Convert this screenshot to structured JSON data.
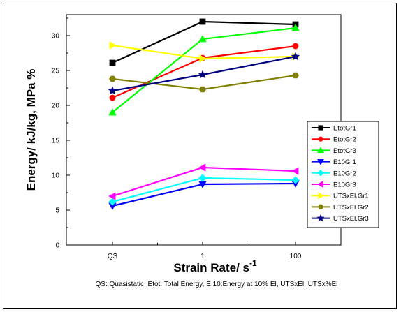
{
  "chart_data": {
    "type": "line",
    "categories": [
      "QS",
      "1",
      "100"
    ],
    "ylim": [
      0,
      33
    ],
    "yticks": [
      0,
      5,
      10,
      15,
      20,
      25,
      30
    ],
    "ylabel": "Energy/ kJ/kg, MPa %",
    "xlabel": "Strain Rate/ s",
    "xlabel_exponent": "-1",
    "footnote": "QS: Quasistatic, Etot: Total Energy, E 10:Energy at 10% El, UTSxEl: UTSx%El",
    "legend_position": "right",
    "grid": false,
    "series": [
      {
        "name": "EtotGr1",
        "values": [
          26.1,
          32.0,
          31.6
        ],
        "color": "#000000",
        "marker": "square"
      },
      {
        "name": "EtotGr2",
        "values": [
          21.1,
          26.8,
          28.5
        ],
        "color": "#ff0000",
        "marker": "circle"
      },
      {
        "name": "EtotGr3",
        "values": [
          19.0,
          29.5,
          31.1
        ],
        "color": "#00ff00",
        "marker": "triangle-up"
      },
      {
        "name": "E10Gr1",
        "values": [
          5.6,
          8.7,
          8.8
        ],
        "color": "#0000ff",
        "marker": "triangle-down"
      },
      {
        "name": "E10Gr2",
        "values": [
          6.2,
          9.6,
          9.3
        ],
        "color": "#00ffff",
        "marker": "diamond"
      },
      {
        "name": "E10Gr3",
        "values": [
          7.0,
          11.1,
          10.6
        ],
        "color": "#ff00ff",
        "marker": "triangle-left"
      },
      {
        "name": "UTSxEl.Gr1",
        "values": [
          28.6,
          26.7,
          27.0
        ],
        "color": "#ffff00",
        "marker": "triangle-right"
      },
      {
        "name": "UTSxEl.Gr2",
        "values": [
          23.8,
          22.3,
          24.3
        ],
        "color": "#808000",
        "marker": "hexagon"
      },
      {
        "name": "UTSxEl.Gr3",
        "values": [
          22.1,
          24.4,
          27.0
        ],
        "color": "#000080",
        "marker": "star"
      }
    ]
  }
}
